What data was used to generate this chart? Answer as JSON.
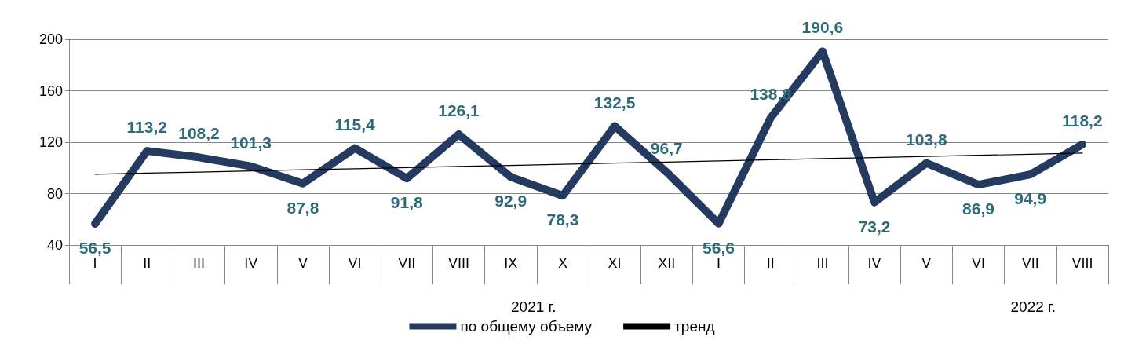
{
  "chart_data": {
    "type": "line",
    "categories": [
      "I",
      "II",
      "III",
      "IV",
      "V",
      "VI",
      "VII",
      "VIII",
      "IX",
      "X",
      "XI",
      "XII",
      "I",
      "II",
      "III",
      "IV",
      "V",
      "VI",
      "VII",
      "VIII"
    ],
    "series": [
      {
        "name": "по общему объему",
        "color": "#243a5e",
        "values": [
          56.5,
          113.2,
          108.2,
          101.3,
          87.8,
          115.4,
          91.8,
          126.1,
          92.9,
          78.3,
          132.5,
          96.7,
          56.6,
          138.8,
          190.6,
          73.2,
          103.8,
          86.9,
          94.9,
          118.2
        ],
        "value_labels": [
          "56,5",
          "113,2",
          "108,2",
          "101,3",
          "87,8",
          "115,4",
          "91,8",
          "126,1",
          "92,9",
          "78,3",
          "132,5",
          "96,7",
          "56,6",
          "138,8",
          "190,6",
          "73,2",
          "103,8",
          "86,9",
          "94,9",
          "118,2"
        ]
      },
      {
        "name": "тренд",
        "color": "#000000",
        "values": [
          95.0,
          95.9,
          96.7,
          97.6,
          98.5,
          99.3,
          100.2,
          101.1,
          101.9,
          102.8,
          103.7,
          104.5,
          105.4,
          106.3,
          107.2,
          108.0,
          108.9,
          109.8,
          110.6,
          111.5
        ]
      }
    ],
    "ylim": [
      40,
      200
    ],
    "yticks": [
      40,
      80,
      120,
      160,
      200
    ],
    "grid": "y",
    "legend": "bottom",
    "marker": "none",
    "annotations": [
      "2021 г.",
      "2022 г."
    ]
  }
}
